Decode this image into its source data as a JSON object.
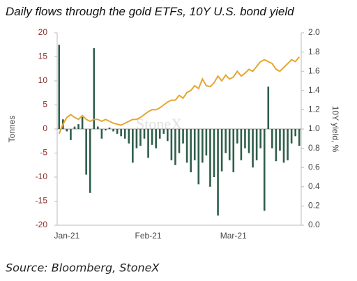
{
  "chart_data": {
    "type": "bar",
    "title": "Daily flows through the gold ETFs, 10Y U.S. bond yield",
    "source": "Source: Bloomberg, StoneX",
    "watermark": "StoneX",
    "ylabel": "Tonnes",
    "y2label": "10Y yield, %",
    "categories": [
      null,
      null,
      "Jan-21",
      null,
      null,
      null,
      null,
      null,
      null,
      null,
      null,
      null,
      null,
      null,
      null,
      null,
      null,
      null,
      null,
      null,
      null,
      null,
      null,
      "Feb-21",
      null,
      null,
      null,
      null,
      null,
      null,
      null,
      null,
      null,
      null,
      null,
      null,
      null,
      null,
      null,
      null,
      null,
      null,
      null,
      null,
      null,
      "Mar-21",
      null,
      null,
      null,
      null,
      null,
      null,
      null,
      null,
      null,
      null,
      null,
      null,
      null,
      null,
      null,
      null,
      null
    ],
    "series": [
      {
        "name": "Daily flows",
        "type": "bar",
        "color": "#2e5e4a",
        "values": [
          17.5,
          2,
          -0.5,
          -2.3,
          0.5,
          1,
          2.5,
          -9.5,
          -13.3,
          16.8,
          0.5,
          -2,
          -0.3,
          0.3,
          -0.5,
          -1,
          -1.5,
          -2,
          -3,
          -7,
          -4,
          -3.5,
          -2,
          -6,
          -3.3,
          -4,
          -2,
          -1,
          -2.5,
          -6.5,
          -7.5,
          -5,
          -3,
          -7,
          -9,
          -6.5,
          -11.5,
          -7,
          -5.5,
          -12,
          -10,
          -18,
          -8.8,
          -5,
          -6.5,
          -9,
          -3,
          -6.5,
          -4,
          -5,
          -8,
          -6.5,
          -4,
          -17,
          8.8,
          -4,
          -6.7,
          -4.5,
          -7,
          -6.5,
          -3,
          -1.5,
          -3.5
        ]
      },
      {
        "name": "10Y yield",
        "type": "line",
        "axis": "y2",
        "color": "#e6a630",
        "values": [
          0.95,
          1.05,
          1.12,
          1.15,
          1.12,
          1.1,
          1.14,
          1.1,
          1.08,
          1.1,
          1.1,
          1.08,
          1.1,
          1.08,
          1.06,
          1.05,
          1.04,
          1.06,
          1.08,
          1.1,
          1.1,
          1.12,
          1.15,
          1.18,
          1.2,
          1.2,
          1.22,
          1.25,
          1.28,
          1.3,
          1.3,
          1.35,
          1.32,
          1.38,
          1.4,
          1.45,
          1.42,
          1.52,
          1.45,
          1.44,
          1.48,
          1.55,
          1.5,
          1.56,
          1.52,
          1.54,
          1.6,
          1.55,
          1.58,
          1.62,
          1.6,
          1.65,
          1.7,
          1.72,
          1.7,
          1.68,
          1.62,
          1.6,
          1.64,
          1.68,
          1.72,
          1.7,
          1.75
        ]
      }
    ],
    "ylim": [
      -20,
      20
    ],
    "yticks": [
      20,
      15,
      10,
      5,
      0,
      -5,
      -10,
      -15,
      -20
    ],
    "y2lim": [
      0,
      2
    ],
    "y2ticks": [
      {
        "value": 2,
        "label": "2.0"
      },
      {
        "value": 1.8,
        "label": "1.8"
      },
      {
        "value": 1.6,
        "label": "1.6"
      },
      {
        "value": 1.4,
        "label": "1.4"
      },
      {
        "value": 1.2,
        "label": "1.2"
      },
      {
        "value": 1,
        "label": "1.0"
      },
      {
        "value": 0.8,
        "label": "0.8"
      },
      {
        "value": 0.6,
        "label": "0.6"
      },
      {
        "value": 0.4,
        "label": "0.4"
      },
      {
        "value": 0.2,
        "label": "0.2"
      },
      {
        "value": 0,
        "label": "0.0"
      }
    ]
  }
}
